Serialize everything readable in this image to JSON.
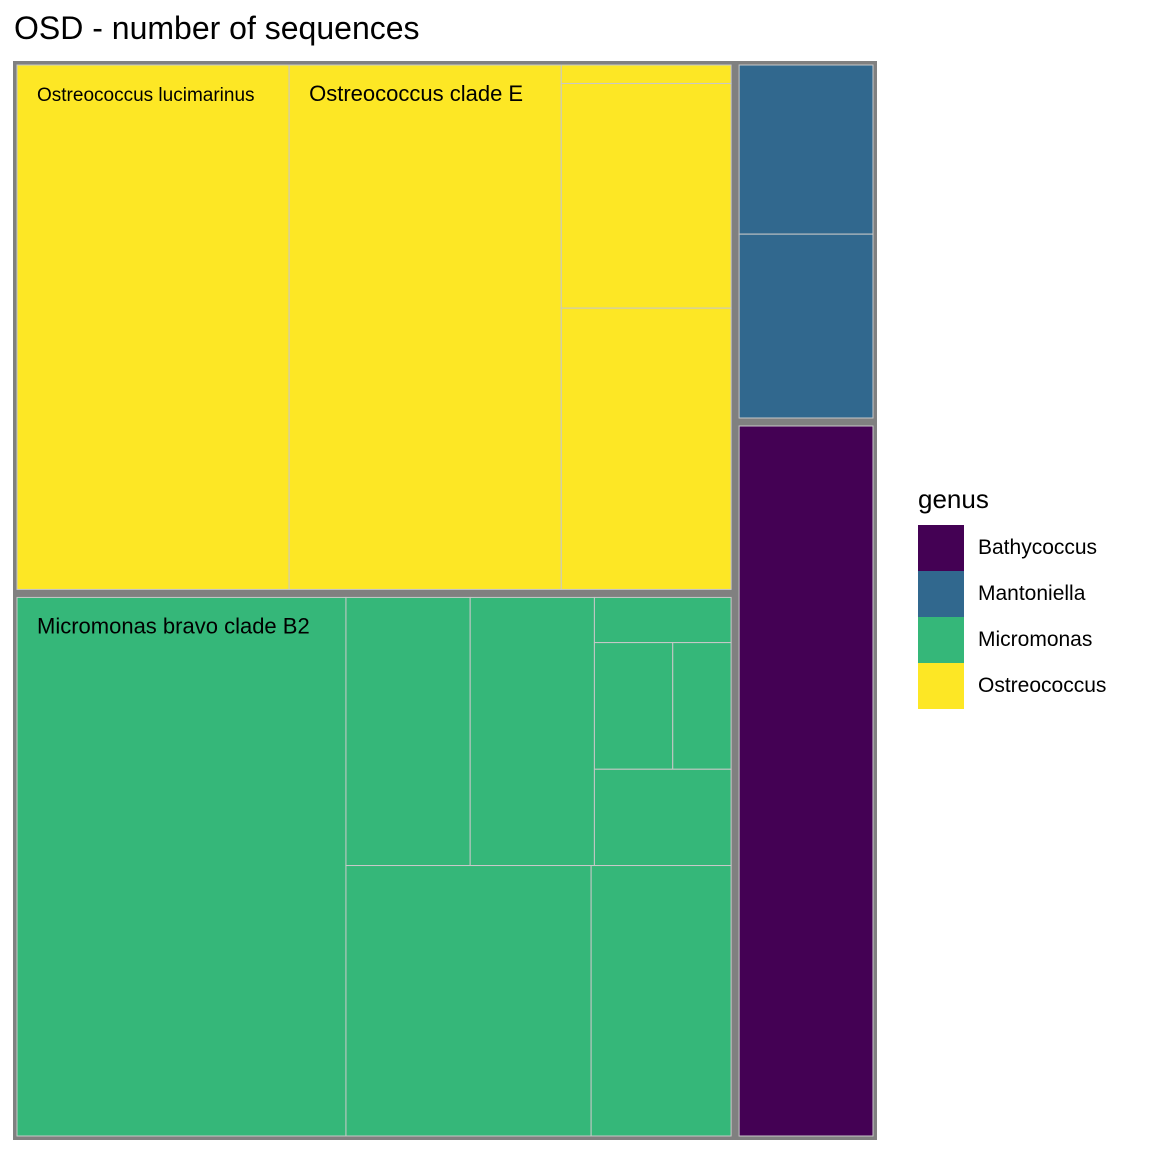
{
  "chart_data": {
    "type": "treemap",
    "title": "OSD - number of sequences",
    "legend": {
      "title": "genus",
      "placement": "right",
      "items": [
        {
          "label": "Bathycoccus",
          "color": "#440154"
        },
        {
          "label": "Mantoniella",
          "color": "#31688E"
        },
        {
          "label": "Micromonas",
          "color": "#35B779"
        },
        {
          "label": "Ostreococcus",
          "color": "#FDE725"
        }
      ]
    },
    "groups": [
      {
        "genus": "Ostreococcus",
        "color": "#FDE725",
        "tiles": [
          {
            "label": "Ostreococcus lucimarinus",
            "value": 141000
          },
          {
            "label": "Ostreococcus clade E",
            "value": 141000
          },
          {
            "label": "",
            "value": 3100
          },
          {
            "label": "",
            "value": 37700
          },
          {
            "label": "",
            "value": 47200
          }
        ]
      },
      {
        "genus": "Micromonas",
        "color": "#35B779",
        "tiles": [
          {
            "label": "Micromonas bravo clade B2",
            "value": 175000
          },
          {
            "label": "",
            "value": 32900
          },
          {
            "label": "",
            "value": 32900
          },
          {
            "label": "",
            "value": 6100
          },
          {
            "label": "",
            "value": 9800
          },
          {
            "label": "",
            "value": 7300
          },
          {
            "label": "",
            "value": 13000
          },
          {
            "label": "",
            "value": 65500
          },
          {
            "label": "",
            "value": 37400
          }
        ]
      },
      {
        "genus": "Mantoniella",
        "color": "#31688E",
        "tiles": [
          {
            "label": "",
            "value": 23000
          },
          {
            "label": "",
            "value": 25000
          }
        ]
      },
      {
        "genus": "Bathycoccus",
        "color": "#440154",
        "tiles": [
          {
            "label": "",
            "value": 96000
          }
        ]
      }
    ]
  }
}
